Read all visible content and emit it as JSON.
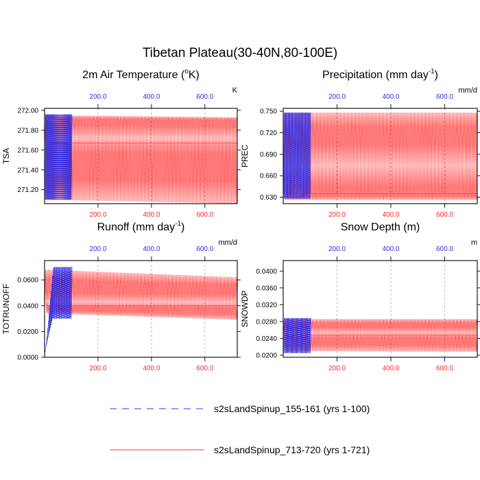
{
  "figure_title": "Tibetan Plateau(30-40N,80-100E)",
  "legend": {
    "entries": [
      {
        "label": "s2sLandSpinup_155-161 (yrs 1-100)",
        "color": "#3333ff",
        "style": "dashed"
      },
      {
        "label": "s2sLandSpinup_713-720 (yrs 1-721)",
        "color": "#ff3333",
        "style": "solid"
      }
    ]
  },
  "colors": {
    "blue": "#2a2ae6",
    "red": "#ff2222"
  },
  "chart_data": [
    {
      "type": "line",
      "title_main": "2m Air Temperature (",
      "title_sup": "o",
      "title_end": "K)",
      "units": "K",
      "ylabel": "TSA",
      "xlim": [
        0,
        721
      ],
      "ylim": [
        271.06,
        272.02
      ],
      "yticks": [
        271.2,
        271.4,
        271.6,
        271.8,
        272.0
      ],
      "ytick_labels": [
        "271.20",
        "271.40",
        "271.60",
        "271.80",
        "272.00"
      ],
      "xticks": [
        200,
        400,
        600
      ],
      "xtick_labels": [
        "200.0",
        "400.0",
        "600.0"
      ],
      "series": [
        {
          "name": "s2sLandSpinup_155-161",
          "years": [
            1,
            100
          ],
          "cycle_min": 271.1,
          "cycle_max": 271.96,
          "annual_low": 271.68,
          "annual_high": 271.91
        },
        {
          "name": "s2sLandSpinup_713-720",
          "years": [
            1,
            721
          ],
          "cycle_min_start": 271.1,
          "cycle_min_end": 271.06,
          "cycle_max_start": 271.95,
          "cycle_max_end": 271.93,
          "annual_low": 271.67,
          "annual_high": 271.88
        }
      ]
    },
    {
      "type": "line",
      "title_main": "Precipitation (mm day",
      "title_sup": "-1",
      "title_end": ")",
      "units": "mm/d",
      "ylabel": "PREC",
      "xlim": [
        0,
        721
      ],
      "ylim": [
        0.621,
        0.754
      ],
      "yticks": [
        0.63,
        0.66,
        0.69,
        0.72,
        0.75
      ],
      "ytick_labels": [
        "0.630",
        "0.660",
        "0.690",
        "0.720",
        "0.750"
      ],
      "xticks": [
        200,
        400,
        600
      ],
      "xtick_labels": [
        "200.0",
        "400.0",
        "600.0"
      ],
      "series": [
        {
          "name": "s2sLandSpinup_155-161",
          "years": [
            1,
            100
          ],
          "cycle_min": 0.628,
          "cycle_max": 0.748,
          "annual_low": 0.636,
          "annual_high": 0.705
        },
        {
          "name": "s2sLandSpinup_713-720",
          "years": [
            1,
            721
          ],
          "cycle_min_start": 0.626,
          "cycle_min_end": 0.626,
          "cycle_max_start": 0.748,
          "cycle_max_end": 0.748,
          "annual_low": 0.635,
          "annual_high": 0.704
        }
      ]
    },
    {
      "type": "line",
      "title_main": "Runoff (mm day",
      "title_sup": "-1",
      "title_end": ")",
      "units": "mm/d",
      "ylabel": "TOTRUNOFF",
      "xlim": [
        0,
        721
      ],
      "ylim": [
        0,
        0.075
      ],
      "yticks": [
        0.0,
        0.02,
        0.04,
        0.06
      ],
      "ytick_labels": [
        "0.0000",
        "0.0200",
        "0.0400",
        "0.0600"
      ],
      "xticks": [
        200,
        400,
        600
      ],
      "xtick_labels": [
        "200.0",
        "400.0",
        "600.0"
      ],
      "series": [
        {
          "name": "s2sLandSpinup_155-161",
          "years": [
            1,
            100
          ],
          "start_value": 0.003,
          "cycle_min": 0.03,
          "cycle_max": 0.07,
          "annual_low": 0.04,
          "annual_high": 0.046
        },
        {
          "name": "s2sLandSpinup_713-720",
          "years": [
            1,
            721
          ],
          "cycle_min_start": 0.034,
          "cycle_min_end": 0.029,
          "cycle_max_start": 0.068,
          "cycle_max_end": 0.062,
          "annual_low": 0.04,
          "annual_high": 0.045
        }
      ]
    },
    {
      "type": "line",
      "title_main": "Snow Depth (m)",
      "title_sup": "",
      "title_end": "",
      "units": "m",
      "ylabel": "SNOWDP",
      "xlim": [
        0,
        721
      ],
      "ylim": [
        0.0195,
        0.0425
      ],
      "yticks": [
        0.02,
        0.024,
        0.028,
        0.032,
        0.036,
        0.04
      ],
      "ytick_labels": [
        "0.0200",
        "0.0240",
        "0.0280",
        "0.0320",
        "0.0360",
        "0.0400"
      ],
      "xticks": [
        200,
        400,
        600
      ],
      "xtick_labels": [
        "200.0",
        "400.0",
        "600.0"
      ],
      "series": [
        {
          "name": "s2sLandSpinup_155-161",
          "years": [
            1,
            100
          ],
          "cycle_min": 0.0205,
          "cycle_max": 0.0288,
          "annual_low": 0.0245,
          "annual_high": 0.0262
        },
        {
          "name": "s2sLandSpinup_713-720",
          "years": [
            1,
            721
          ],
          "cycle_min_start": 0.021,
          "cycle_min_end": 0.0208,
          "cycle_max_start": 0.0286,
          "cycle_max_end": 0.0286,
          "annual_low": 0.0248,
          "annual_high": 0.0262
        }
      ]
    }
  ]
}
